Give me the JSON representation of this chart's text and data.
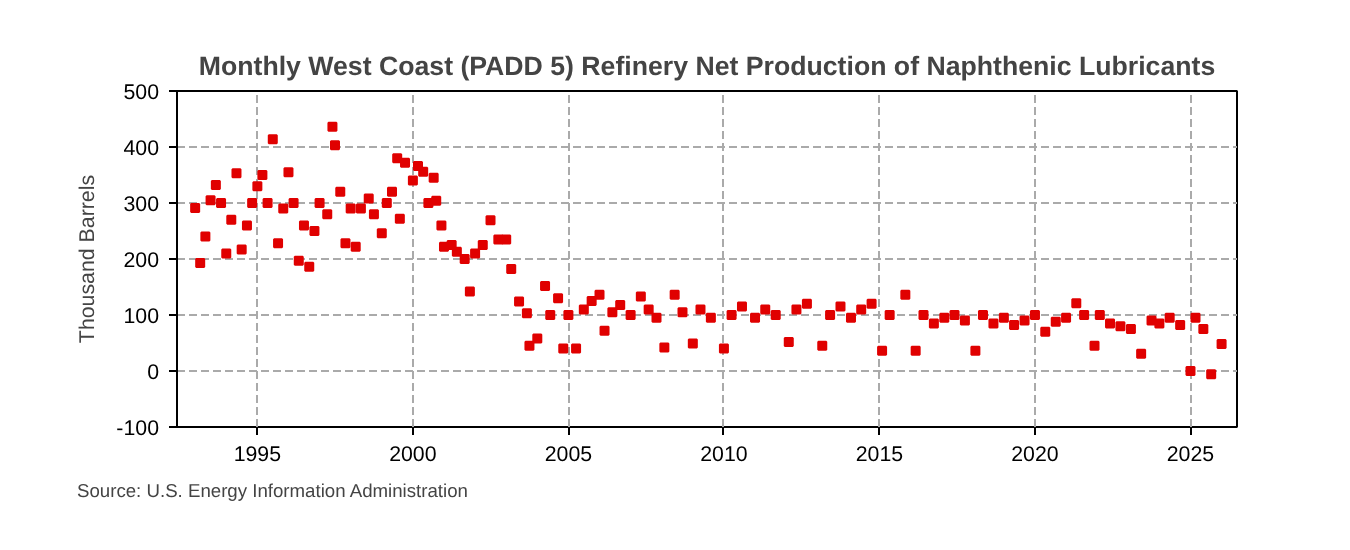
{
  "chart_data": {
    "type": "scatter",
    "title": "Monthly West Coast (PADD 5) Refinery Net Production of Naphthenic Lubricants",
    "ylabel": "Thousand Barrels",
    "annotations": [
      "Source: U.S. Energy Information Administration"
    ],
    "x": [
      "1993-01",
      "1993-03",
      "1993-05",
      "1993-07",
      "1993-09",
      "1993-11",
      "1994-01",
      "1994-03",
      "1994-05",
      "1994-07",
      "1994-09",
      "1994-11",
      "1995-01",
      "1995-03",
      "1995-05",
      "1995-07",
      "1995-09",
      "1995-11",
      "1996-01",
      "1996-03",
      "1996-05",
      "1996-07",
      "1996-09",
      "1996-11",
      "1997-01",
      "1997-04",
      "1997-06",
      "1997-07",
      "1997-09",
      "1997-11",
      "1998-01",
      "1998-03",
      "1998-05",
      "1998-08",
      "1998-10",
      "1999-01",
      "1999-03",
      "1999-05",
      "1999-07",
      "1999-08",
      "1999-10",
      "2000-01",
      "2000-03",
      "2000-05",
      "2000-07",
      "2000-09",
      "2000-10",
      "2000-12",
      "2001-01",
      "2001-04",
      "2001-06",
      "2001-09",
      "2001-11",
      "2002-01",
      "2002-04",
      "2002-07",
      "2002-10",
      "2003-01",
      "2003-03",
      "2003-06",
      "2003-09",
      "2003-10",
      "2004-01",
      "2004-04",
      "2004-06",
      "2004-09",
      "2004-11",
      "2005-01",
      "2005-04",
      "2005-07",
      "2005-10",
      "2006-01",
      "2006-03",
      "2006-06",
      "2006-09",
      "2007-01",
      "2007-05",
      "2007-08",
      "2007-11",
      "2008-02",
      "2008-06",
      "2008-09",
      "2009-01",
      "2009-04",
      "2009-08",
      "2010-01",
      "2010-04",
      "2010-08",
      "2011-01",
      "2011-05",
      "2011-09",
      "2012-02",
      "2012-05",
      "2012-09",
      "2013-03",
      "2013-06",
      "2013-10",
      "2014-02",
      "2014-06",
      "2014-10",
      "2015-02",
      "2015-05",
      "2015-11",
      "2016-03",
      "2016-06",
      "2016-10",
      "2017-02",
      "2017-06",
      "2017-10",
      "2018-02",
      "2018-05",
      "2018-09",
      "2019-01",
      "2019-05",
      "2019-09",
      "2020-01",
      "2020-05",
      "2020-09",
      "2021-01",
      "2021-05",
      "2021-08",
      "2021-12",
      "2022-02",
      "2022-06",
      "2022-10",
      "2023-02",
      "2023-06",
      "2023-10",
      "2024-01",
      "2024-05",
      "2024-09",
      "2025-01",
      "2025-03",
      "2025-06",
      "2025-09",
      "2026-01"
    ],
    "values": [
      291,
      193,
      240,
      305,
      332,
      300,
      210,
      270,
      353,
      217,
      260,
      300,
      330,
      350,
      300,
      414,
      228,
      290,
      355,
      300,
      197,
      260,
      186,
      250,
      300,
      280,
      436,
      403,
      320,
      228,
      290,
      222,
      290,
      308,
      280,
      246,
      300,
      320,
      380,
      272,
      372,
      340,
      366,
      356,
      300,
      345,
      304,
      260,
      222,
      225,
      213,
      200,
      142,
      210,
      225,
      269,
      235,
      235,
      182,
      124,
      103,
      45,
      58,
      152,
      100,
      130,
      40,
      100,
      40,
      110,
      125,
      136,
      72,
      105,
      118,
      100,
      133,
      110,
      95,
      42,
      136,
      105,
      49,
      110,
      95,
      40,
      100,
      115,
      95,
      110,
      100,
      52,
      110,
      120,
      45,
      100,
      115,
      95,
      110,
      120,
      36,
      100,
      136,
      36,
      100,
      85,
      95,
      100,
      90,
      36,
      100,
      85,
      95,
      82,
      90,
      100,
      70,
      88,
      95,
      121,
      100,
      45,
      100,
      85,
      80,
      75,
      31,
      90,
      85,
      95,
      82,
      0,
      95,
      75,
      -6,
      48
    ],
    "color": "#e00000",
    "marker": "square",
    "xlim": [
      "1992-06",
      "2026-07"
    ],
    "ylim": [
      -100,
      500
    ],
    "xticks": [
      "1995",
      "2000",
      "2005",
      "2010",
      "2015",
      "2020",
      "2025"
    ],
    "yticks": [
      -100,
      0,
      100,
      200,
      300,
      400,
      500
    ],
    "grid": true
  }
}
